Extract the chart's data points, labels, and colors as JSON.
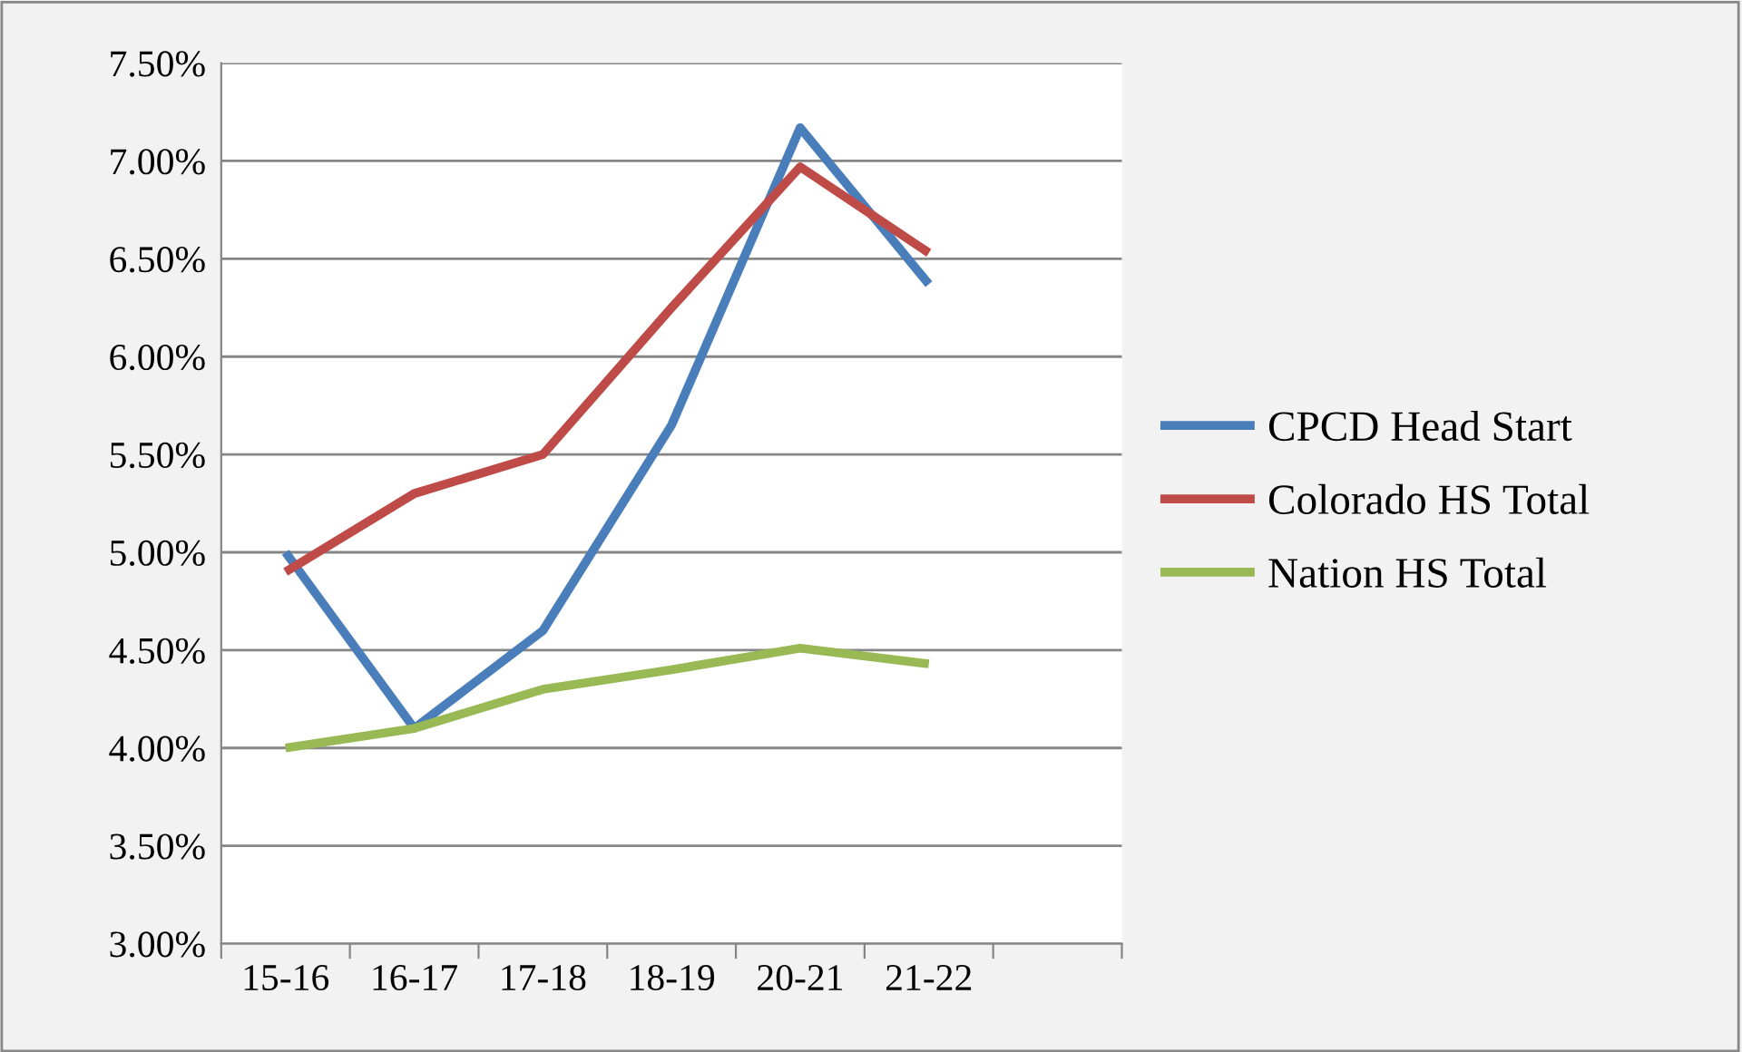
{
  "chart_data": {
    "type": "line",
    "categories": [
      "15-16",
      "16-17",
      "17-18",
      "18-19",
      "20-21",
      "21-22",
      null
    ],
    "series": [
      {
        "name": "CPCD Head Start",
        "color": "#4a7ebb",
        "values": [
          5.0,
          4.1,
          4.6,
          5.65,
          7.17,
          6.37,
          null
        ]
      },
      {
        "name": "Colorado HS Total",
        "color": "#be4b48",
        "values": [
          4.9,
          5.3,
          5.5,
          6.25,
          6.97,
          6.53,
          null
        ]
      },
      {
        "name": "Nation HS Total",
        "color": "#98b954",
        "values": [
          4.0,
          4.1,
          4.3,
          4.4,
          4.51,
          4.43,
          null
        ]
      }
    ],
    "ylim": [
      3.0,
      7.5
    ],
    "yticks": [
      {
        "value": 3.0,
        "label": "3.00%"
      },
      {
        "value": 3.5,
        "label": "3.50%"
      },
      {
        "value": 4.0,
        "label": "4.00%"
      },
      {
        "value": 4.5,
        "label": "4.50%"
      },
      {
        "value": 5.0,
        "label": "5.00%"
      },
      {
        "value": 5.5,
        "label": "5.50%"
      },
      {
        "value": 6.0,
        "label": "6.00%"
      },
      {
        "value": 6.5,
        "label": "6.50%"
      },
      {
        "value": 7.0,
        "label": "7.00%"
      },
      {
        "value": 7.5,
        "label": "7.50%"
      }
    ],
    "grid": "y",
    "legend": "right",
    "marker": "none",
    "line_style": "solid"
  }
}
